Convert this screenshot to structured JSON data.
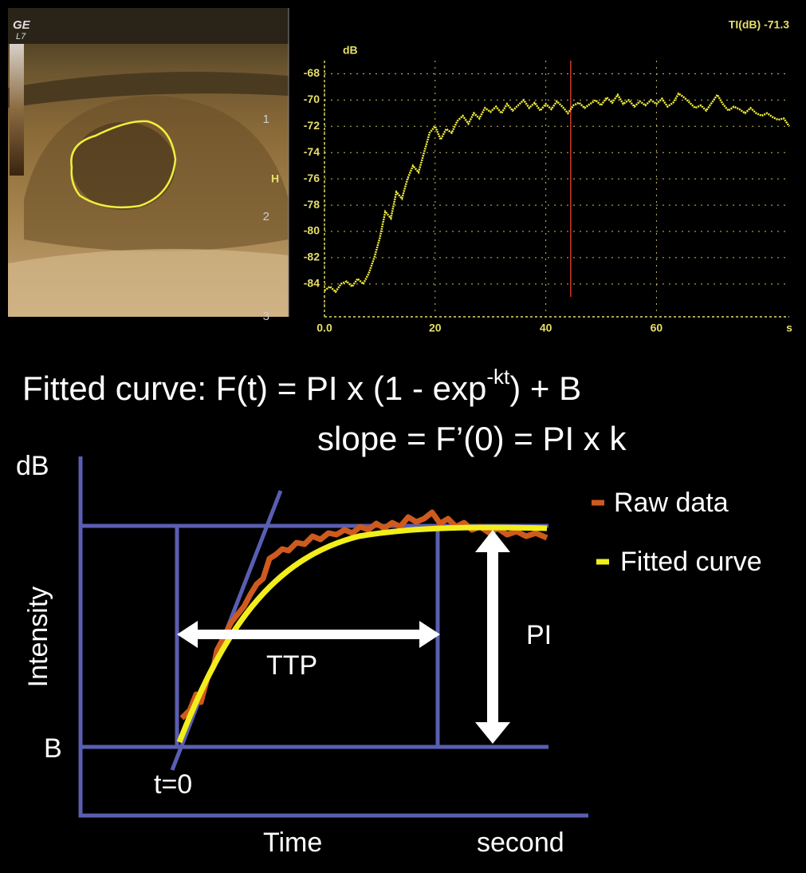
{
  "chart_data": {
    "type": "line",
    "readout": "TI(dB) -71.3",
    "y_label": "dB",
    "x_label": "s",
    "x": [
      0,
      1,
      2,
      3,
      4,
      5,
      6,
      7,
      8,
      9,
      10,
      11,
      12,
      13,
      14,
      15,
      16,
      17,
      18,
      19,
      20,
      21,
      22,
      23,
      24,
      25,
      26,
      27,
      28,
      29,
      30,
      31,
      32,
      33,
      34,
      35,
      36,
      37,
      38,
      39,
      40,
      41,
      42,
      43,
      44,
      45,
      46,
      47,
      48,
      49,
      50,
      51,
      52,
      53,
      54,
      55,
      56,
      57,
      58,
      59,
      60,
      61,
      62,
      63,
      64,
      65,
      66,
      67,
      68,
      69,
      70,
      71,
      72,
      73,
      74,
      75,
      76,
      77,
      78,
      79,
      80,
      81,
      82,
      83,
      84
    ],
    "values": [
      -84.5,
      -84.2,
      -84.6,
      -84,
      -83.8,
      -84.2,
      -83.6,
      -84,
      -83.2,
      -82,
      -80.5,
      -78.5,
      -79,
      -77,
      -77.5,
      -76,
      -75,
      -75.5,
      -74,
      -72.5,
      -72,
      -73,
      -72.2,
      -72.5,
      -71.6,
      -71.2,
      -71.8,
      -71,
      -71.4,
      -70.6,
      -70.9,
      -70.5,
      -71,
      -70.3,
      -70.8,
      -70.4,
      -70,
      -70.6,
      -70.2,
      -70.8,
      -70.3,
      -70.7,
      -70.1,
      -70.5,
      -71,
      -70.4,
      -70.2,
      -70.6,
      -70.3,
      -70,
      -70.4,
      -69.8,
      -70.2,
      -69.6,
      -70.3,
      -70,
      -70.5,
      -70.1,
      -70.4,
      -70,
      -70.3,
      -69.9,
      -70.5,
      -70.2,
      -69.5,
      -69.8,
      -70.2,
      -70.6,
      -70.4,
      -70.8,
      -70.2,
      -69.6,
      -70.3,
      -70.8,
      -70.5,
      -70.7,
      -71,
      -70.6,
      -71,
      -71.2,
      -71,
      -71.3,
      -71.5,
      -71.4,
      -72
    ],
    "color": "#f2ee3c",
    "cursor_x": 44.5,
    "cursor_color": "#d23a2a",
    "xlim": [
      0,
      84
    ],
    "ylim": [
      -86.5,
      -67
    ],
    "xticks": [
      {
        "value": 0,
        "label": "0.0"
      },
      20,
      40,
      60
    ],
    "yticks": [
      -68,
      -70,
      -72,
      -74,
      -76,
      -78,
      -80,
      -82,
      -84
    ],
    "grid": true
  },
  "ultrasound": {
    "logo": "GE",
    "probe": "L7",
    "marker": "H",
    "depth_labels": [
      "1",
      "2",
      "3"
    ]
  },
  "diagram": {
    "formula": {
      "prefix": "Fitted curve: F(t) = PI x (1 - exp",
      "superscript": "-kt",
      "suffix": ") + B"
    },
    "slope": "slope = F’(0) = PI x k",
    "y_unit": "dB",
    "y_label": "Intensity",
    "baseline": "B",
    "t0": "t=0",
    "x_label": "Time",
    "x_unit": "second",
    "ttp": "TTP",
    "pi": "PI",
    "legend": [
      "Raw data",
      "Fitted curve"
    ]
  }
}
